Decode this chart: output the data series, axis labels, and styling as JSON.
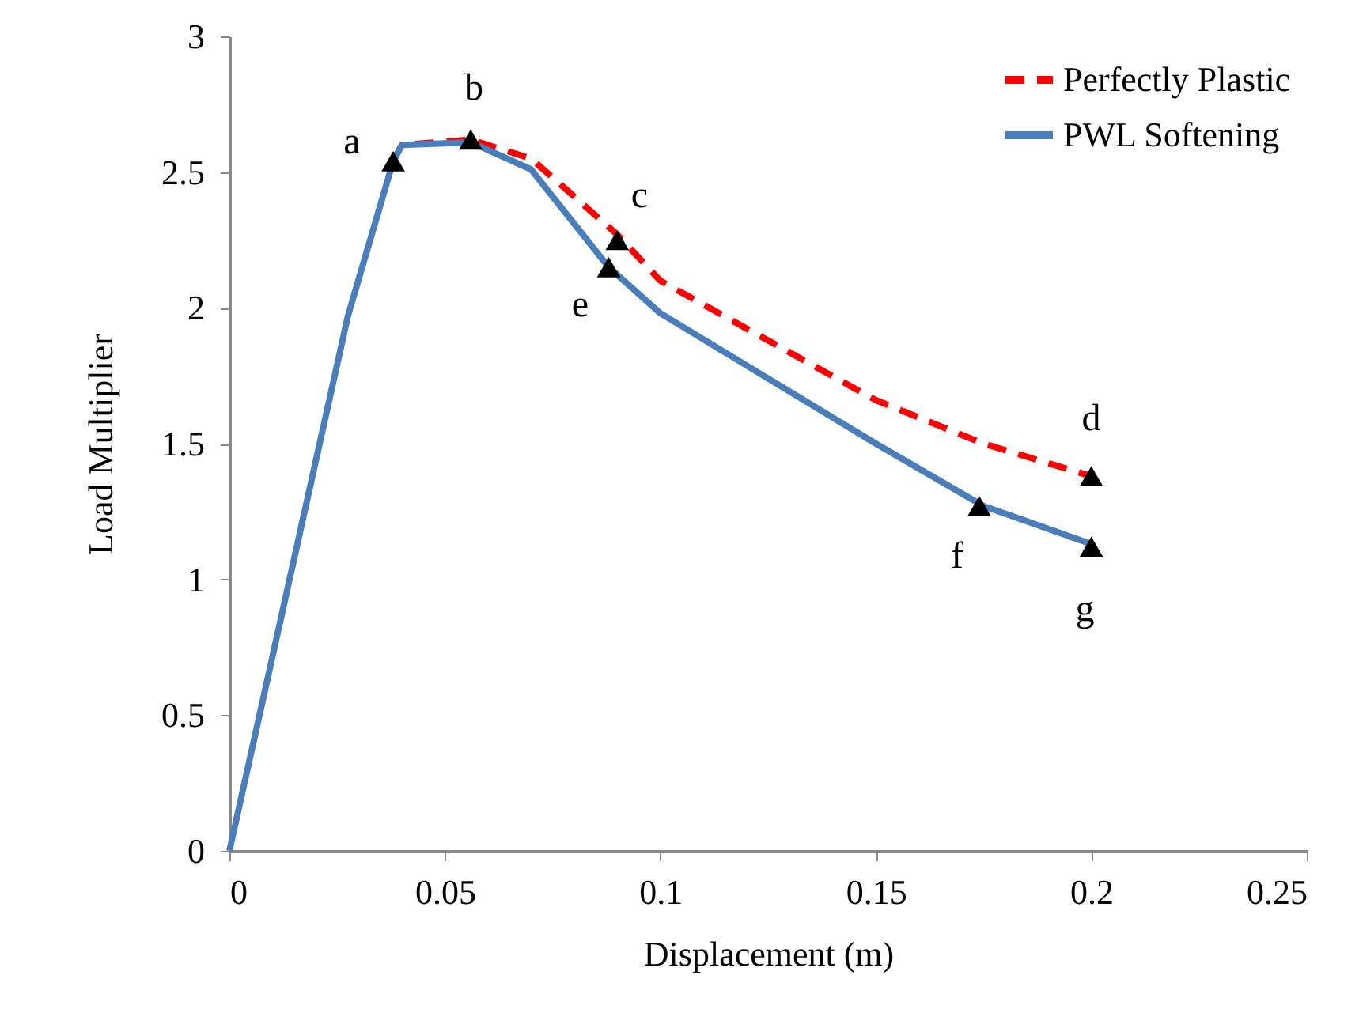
{
  "chart_data": {
    "type": "line",
    "xlabel": "Displacement (m)",
    "ylabel": "Load Multiplier",
    "xlim": [
      0,
      0.25
    ],
    "xticks": [
      0,
      0.05,
      0.1,
      0.15,
      0.2,
      0.25
    ],
    "ylim": [
      0,
      3
    ],
    "yticks": [
      0,
      0.5,
      1,
      1.5,
      2,
      2.5,
      3
    ],
    "grid": false,
    "legend": "top right",
    "series": [
      {
        "name": "Perfectly Plastic",
        "color": "#ff0000",
        "line_style": "dashed",
        "marker": "none",
        "x": [
          0.038,
          0.04,
          0.056,
          0.07,
          0.09,
          0.1,
          0.125,
          0.15,
          0.175,
          0.2
        ],
        "values": [
          2.54,
          2.6,
          2.62,
          2.55,
          2.27,
          2.1,
          1.88,
          1.66,
          1.5,
          1.38
        ]
      },
      {
        "name": "PWL Softening",
        "color": "#4a7ebb",
        "line_style": "solid",
        "marker": "none",
        "x": [
          0,
          0.0275,
          0.038,
          0.04,
          0.056,
          0.07,
          0.088,
          0.1,
          0.125,
          0.15,
          0.175,
          0.2
        ],
        "values": [
          0,
          1.97,
          2.54,
          2.6,
          2.61,
          2.51,
          2.15,
          1.98,
          1.74,
          1.5,
          1.27,
          1.13
        ]
      },
      {
        "type": "scatter",
        "color": "#000000",
        "marker": "triangle",
        "x": [
          0.038,
          0.056,
          0.09,
          0.2,
          0.088,
          0.174,
          0.2
        ],
        "values": [
          2.54,
          2.62,
          2.25,
          1.38,
          2.15,
          1.27,
          1.12
        ]
      }
    ],
    "annotations": [
      {
        "text": "a",
        "x": 0.038,
        "y": 2.54
      },
      {
        "text": "b",
        "x": 0.056,
        "y": 2.62
      },
      {
        "text": "c",
        "x": 0.09,
        "y": 2.25
      },
      {
        "text": "d",
        "x": 0.2,
        "y": 1.38
      },
      {
        "text": "e",
        "x": 0.088,
        "y": 2.15
      },
      {
        "text": "f",
        "x": 0.174,
        "y": 1.27
      },
      {
        "text": "g",
        "x": 0.2,
        "y": 1.12
      }
    ]
  }
}
